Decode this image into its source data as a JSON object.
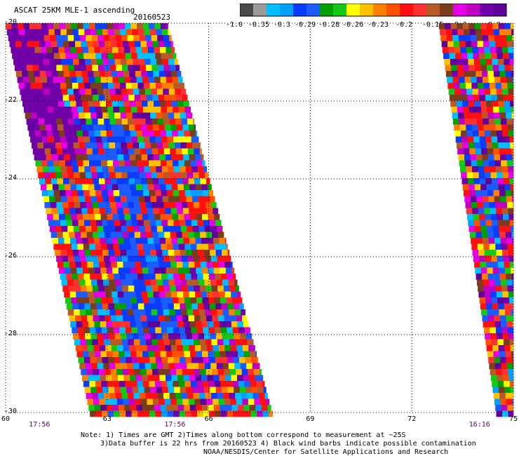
{
  "header": {
    "title": "ASCAT 25KM MLE-1 ascending",
    "date": "20160523"
  },
  "colorbar": {
    "colors": [
      "#4a4a4a",
      "#9a9a9a",
      "#00bfff",
      "#00a0ff",
      "#0a3cff",
      "#1c5cff",
      "#00a000",
      "#14c814",
      "#ffff00",
      "#ffc000",
      "#ff7f00",
      "#ff5000",
      "#ff1010",
      "#ff3030",
      "#b85a28",
      "#7a3c1e",
      "#e600e6",
      "#c000c0",
      "#7000a8",
      "#60009a"
    ],
    "tick_labels": [
      "-1.0",
      "-0.35",
      "-0.3",
      "-0.29",
      "-0.28",
      "-0.26",
      "-0.23",
      "-0.2",
      "-0.15",
      "-0.1",
      "0.0"
    ]
  },
  "chart_data": {
    "type": "heatmap",
    "title": "ASCAT 25KM MLE-1 ascending",
    "xlim": [
      60,
      75
    ],
    "ylim": [
      -30,
      -20
    ],
    "x_ticks": [
      "60",
      "63",
      "66",
      "69",
      "72",
      "75"
    ],
    "y_ticks": [
      "-20",
      "-22",
      "-24",
      "-26",
      "-28",
      "-30"
    ],
    "time_labels": [
      {
        "text": "17:56",
        "lon": 61
      },
      {
        "text": "17:56",
        "lon": 65
      },
      {
        "text": "16:16",
        "lon": 74
      }
    ],
    "grid": true,
    "swaths": [
      {
        "pass": "17:56",
        "lat_top": -20,
        "lat_bottom": -30,
        "west_lon_top": 60.0,
        "west_lon_bottom": 62.5,
        "east_lon_top": 64.8,
        "east_lon_bottom": 67.9
      },
      {
        "pass": "16:16",
        "lat_top": -20,
        "lat_bottom": -30,
        "west_lon_top": 72.8,
        "west_lon_bottom": 74.5,
        "east_lon_top": 75.0,
        "east_lon_bottom": 75.0
      }
    ]
  },
  "notes": {
    "line1": "Note: 1) Times are GMT 2)Times along bottom correspond to measurement at ~25S",
    "line2": "3)Data buffer is 22 hrs from 20160523 4) Black wind barbs indicate possible contamination",
    "line3": "NOAA/NESDIS/Center for Satellite Applications and Research"
  }
}
